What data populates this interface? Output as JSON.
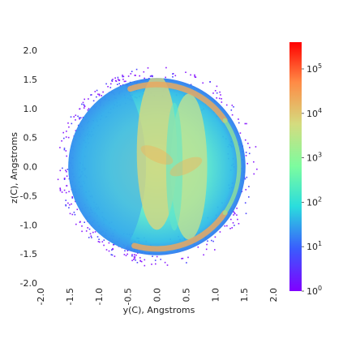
{
  "chart_data": {
    "type": "heatmap",
    "title": "",
    "xlabel": "y(C), Angstroms",
    "ylabel": "z(C), Angstroms",
    "xlim": [
      -2.0,
      2.0
    ],
    "ylim": [
      -2.0,
      2.0
    ],
    "x_ticks": [
      "-2.0",
      "-1.5",
      "-1.0",
      "-0.5",
      "0.0",
      "0.5",
      "1.0",
      "1.5",
      "2.0"
    ],
    "y_ticks": [
      "2.0",
      "1.5",
      "1.0",
      "0.5",
      "0.0",
      "-0.5",
      "-1.0",
      "-1.5",
      "-2.0"
    ],
    "grid": false,
    "colorscale": "rainbow",
    "color_scale_type": "log",
    "colorbar": {
      "range": [
        1,
        400000
      ],
      "tick_mantissa": "10",
      "tick_exponents": [
        "0",
        "1",
        "2",
        "3",
        "4",
        "5"
      ],
      "colors": [
        "#8000ff",
        "#3a5cfd",
        "#2adddd",
        "#7cfc9f",
        "#d4dc7f",
        "#ff8a45",
        "#ff0000"
      ]
    },
    "distribution": {
      "shape": "disc",
      "center": [
        0.0,
        0.0
      ],
      "radius": 1.57,
      "description_peaks": [
        {
          "y": 0.65,
          "z": 1.45,
          "level": "max"
        },
        {
          "y": 0.65,
          "z": -1.45,
          "level": "max"
        },
        {
          "y": 0.0,
          "z": 0.2,
          "level": "high"
        },
        {
          "y": 0.5,
          "z": 0.0,
          "level": "high"
        }
      ]
    }
  }
}
